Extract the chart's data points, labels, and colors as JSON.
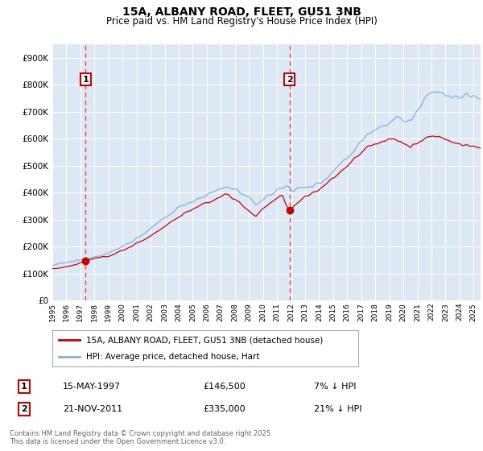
{
  "title": "15A, ALBANY ROAD, FLEET, GU51 3NB",
  "subtitle": "Price paid vs. HM Land Registry's House Price Index (HPI)",
  "ylabel_values": [
    "£0",
    "£100K",
    "£200K",
    "£300K",
    "£400K",
    "£500K",
    "£600K",
    "£700K",
    "£800K",
    "£900K"
  ],
  "yticks": [
    0,
    100000,
    200000,
    300000,
    400000,
    500000,
    600000,
    700000,
    800000,
    900000
  ],
  "ylim": [
    0,
    950000
  ],
  "xlim_start": 1995.0,
  "xlim_end": 2025.5,
  "background_color": "#dde8f5",
  "plot_bg_color": "#dde8f5",
  "grid_color": "#ffffff",
  "hpi_color": "#7fb3d8",
  "price_color": "#cc0000",
  "dashed_line_color": "#ee4444",
  "legend_label_price": "15A, ALBANY ROAD, FLEET, GU51 3NB (detached house)",
  "legend_label_hpi": "HPI: Average price, detached house, Hart",
  "transaction1_date": "15-MAY-1997",
  "transaction1_price": "£146,500",
  "transaction1_hpi": "7% ↓ HPI",
  "transaction1_year": 1997.37,
  "transaction1_value": 146500,
  "transaction2_date": "21-NOV-2011",
  "transaction2_price": "£335,000",
  "transaction2_hpi": "21% ↓ HPI",
  "transaction2_year": 2011.89,
  "transaction2_value": 335000,
  "footnote": "Contains HM Land Registry data © Crown copyright and database right 2025.\nThis data is licensed under the Open Government Licence v3.0.",
  "xtick_years": [
    1995,
    1996,
    1997,
    1998,
    1999,
    2000,
    2001,
    2002,
    2003,
    2004,
    2005,
    2006,
    2007,
    2008,
    2009,
    2010,
    2011,
    2012,
    2013,
    2014,
    2015,
    2016,
    2017,
    2018,
    2019,
    2020,
    2021,
    2022,
    2023,
    2024,
    2025
  ]
}
